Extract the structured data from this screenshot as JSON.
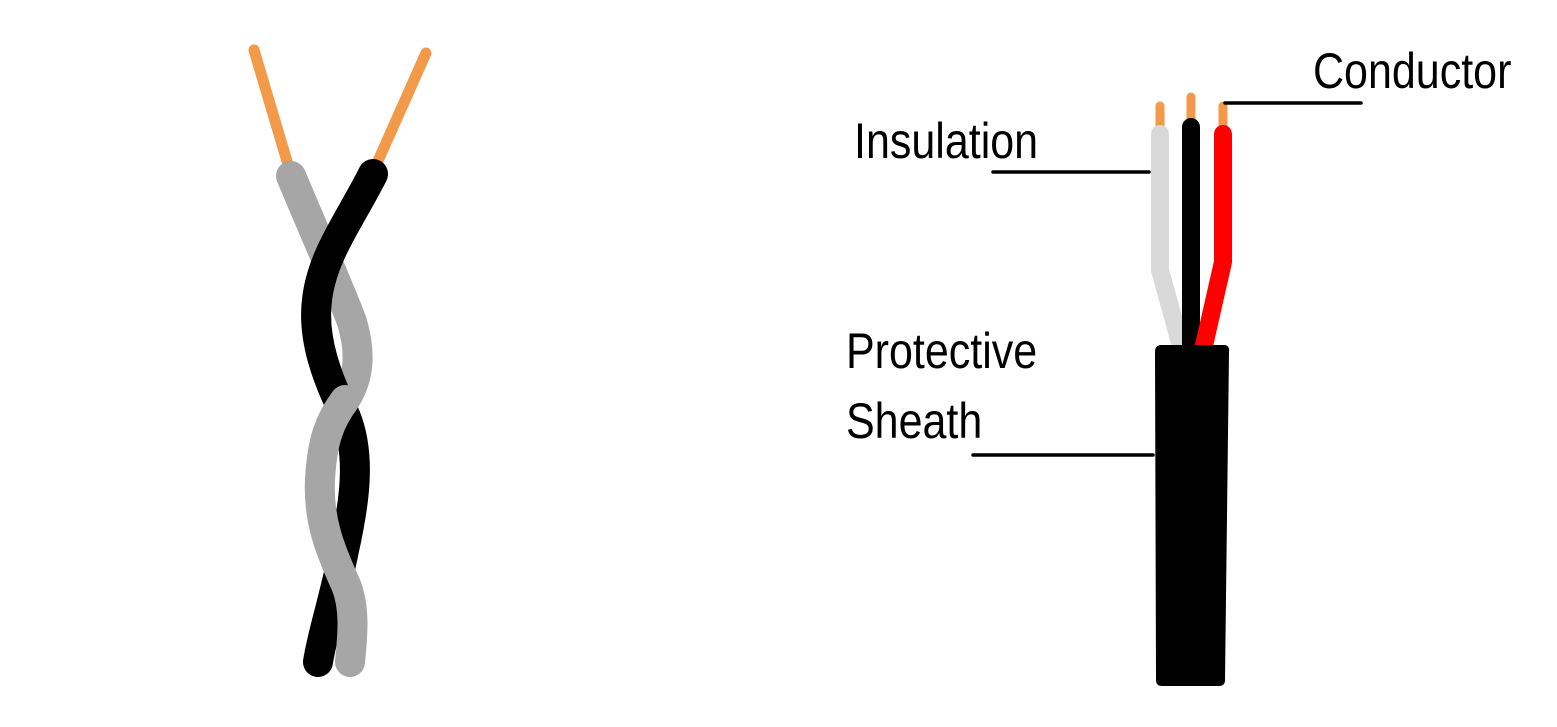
{
  "labels": {
    "conductor": "Conductor",
    "insulation": "Insulation",
    "protective": "Protective",
    "sheath": "Sheath"
  },
  "colors": {
    "background": "#ffffff",
    "conductor_copper": "#f2994a",
    "wire_gray": "#a6a6a6",
    "wire_black": "#000000",
    "wire_white": "#d9d9d9",
    "wire_red": "#ff0000",
    "sheath": "#000000",
    "leader_line": "#000000"
  }
}
